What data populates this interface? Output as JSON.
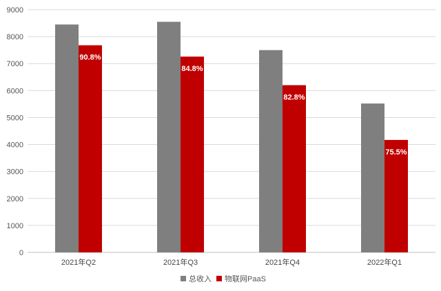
{
  "chart_data": {
    "type": "bar",
    "title": "",
    "xlabel": "",
    "ylabel": "",
    "categories": [
      "2021年Q2",
      "2021年Q3",
      "2021年Q4",
      "2022年Q1"
    ],
    "series": [
      {
        "name": "总收入",
        "values": [
          8450,
          8550,
          7500,
          5520
        ],
        "color": "#7f7f7f"
      },
      {
        "name": "物联网PaaS",
        "values": [
          7680,
          7260,
          6200,
          4170
        ],
        "color": "#c00000"
      }
    ],
    "data_labels": [
      "90.8%",
      "84.8%",
      "82.8%",
      "75.5%"
    ],
    "ylim": [
      0,
      9000
    ],
    "yticks": [
      0,
      1000,
      2000,
      3000,
      4000,
      5000,
      6000,
      7000,
      8000,
      9000
    ],
    "grid": true,
    "legend_position": "bottom-center"
  }
}
